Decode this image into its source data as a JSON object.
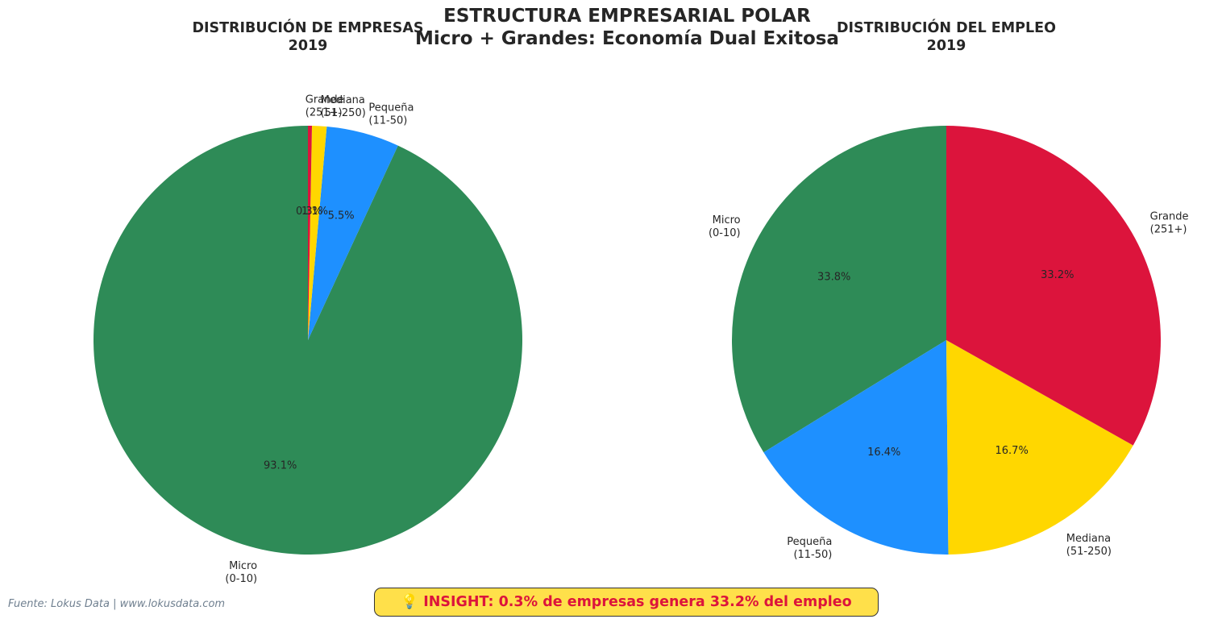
{
  "title": {
    "line1": "ESTRUCTURA EMPRESARIAL POLAR",
    "line2": "Micro + Grandes: Economía Dual Exitosa"
  },
  "chart_data": [
    {
      "type": "pie",
      "title_line1": "DISTRIBUCIÓN DE EMPRESAS",
      "title_line2": "2019",
      "start_angle_deg": 90,
      "direction": "counterclockwise",
      "slices": [
        {
          "label_line1": "Micro",
          "label_line2": "(0-10)",
          "value": 93.1,
          "pct_label": "93.1%",
          "color": "#2e8b57"
        },
        {
          "label_line1": "Pequeña",
          "label_line2": "(11-50)",
          "value": 5.5,
          "pct_label": "5.5%",
          "color": "#1e90ff"
        },
        {
          "label_line1": "Mediana",
          "label_line2": "(51-250)",
          "value": 1.1,
          "pct_label": "1.1%",
          "color": "#ffd700"
        },
        {
          "label_line1": "Grande",
          "label_line2": "(251+)",
          "value": 0.3,
          "pct_label": "0.3%",
          "color": "#dc143c"
        }
      ]
    },
    {
      "type": "pie",
      "title_line1": "DISTRIBUCIÓN DEL EMPLEO",
      "title_line2": "2019",
      "start_angle_deg": 90,
      "direction": "counterclockwise",
      "slices": [
        {
          "label_line1": "Micro",
          "label_line2": "(0-10)",
          "value": 33.8,
          "pct_label": "33.8%",
          "color": "#2e8b57"
        },
        {
          "label_line1": "Pequeña",
          "label_line2": "(11-50)",
          "value": 16.4,
          "pct_label": "16.4%",
          "color": "#1e90ff"
        },
        {
          "label_line1": "Mediana",
          "label_line2": "(51-250)",
          "value": 16.7,
          "pct_label": "16.7%",
          "color": "#ffd700"
        },
        {
          "label_line1": "Grande",
          "label_line2": "(251+)",
          "value": 33.2,
          "pct_label": "33.2%",
          "color": "#dc143c"
        }
      ]
    }
  ],
  "footer": {
    "source": "Fuente: Lokus Data | www.lokusdata.com",
    "insight": "💡 INSIGHT: 0.3% de empresas genera 33.2% del empleo"
  }
}
